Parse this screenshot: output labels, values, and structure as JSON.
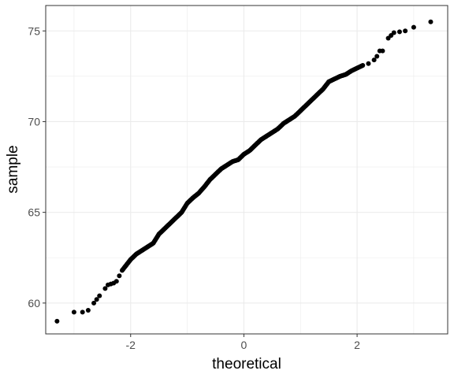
{
  "chart_data": {
    "type": "scatter",
    "title": "",
    "xlabel": "theoretical",
    "ylabel": "sample",
    "xlim": [
      -3.5,
      3.6
    ],
    "ylim": [
      58.3,
      76.4
    ],
    "x_ticks": [
      -2,
      0,
      2
    ],
    "x_tick_labels": [
      "-2",
      "0",
      "2"
    ],
    "y_ticks": [
      60,
      65,
      70,
      75
    ],
    "y_tick_labels": [
      "60",
      "65",
      "70",
      "75"
    ],
    "grid": true,
    "legend": "none",
    "point_color": "#000000",
    "series": [
      {
        "x": [
          -3.3,
          -3.0,
          -2.85,
          -2.75,
          -2.65,
          -2.6,
          -2.55,
          -2.45,
          -2.4,
          -2.35,
          -2.3,
          -2.25,
          -2.2,
          -2.15,
          -2.1,
          -2.05,
          -2.0,
          -1.9,
          -1.8,
          -1.7,
          -1.6,
          -1.5,
          -1.4,
          -1.3,
          -1.2,
          -1.1,
          -1.0,
          -0.9,
          -0.8,
          -0.7,
          -0.6,
          -0.5,
          -0.4,
          -0.3,
          -0.2,
          -0.1,
          0.0,
          0.1,
          0.2,
          0.3,
          0.4,
          0.5,
          0.6,
          0.7,
          0.8,
          0.9,
          1.0,
          1.1,
          1.2,
          1.3,
          1.4,
          1.5,
          1.6,
          1.7,
          1.8,
          1.9,
          2.0,
          2.1,
          2.2,
          2.3,
          2.35,
          2.4,
          2.45,
          2.55,
          2.6,
          2.65,
          2.75,
          2.85,
          3.0,
          3.3
        ],
        "y": [
          59.0,
          59.5,
          59.5,
          59.6,
          60.0,
          60.2,
          60.4,
          60.8,
          61.0,
          61.05,
          61.1,
          61.2,
          61.5,
          61.8,
          62.0,
          62.2,
          62.4,
          62.7,
          62.9,
          63.1,
          63.3,
          63.8,
          64.1,
          64.4,
          64.7,
          65.0,
          65.5,
          65.8,
          66.05,
          66.4,
          66.8,
          67.1,
          67.4,
          67.6,
          67.8,
          67.9,
          68.2,
          68.4,
          68.7,
          69.0,
          69.2,
          69.4,
          69.6,
          69.9,
          70.1,
          70.3,
          70.6,
          70.9,
          71.2,
          71.5,
          71.8,
          72.2,
          72.35,
          72.5,
          72.6,
          72.8,
          72.95,
          73.1,
          73.2,
          73.4,
          73.6,
          73.9,
          73.9,
          74.6,
          74.75,
          74.9,
          74.95,
          75.0,
          75.2,
          75.5
        ]
      }
    ]
  }
}
